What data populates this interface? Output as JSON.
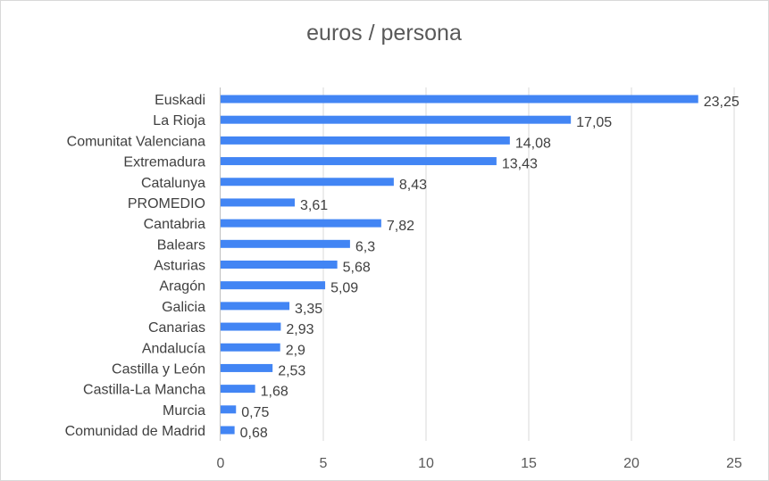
{
  "chart_data": {
    "type": "bar",
    "orientation": "horizontal",
    "title": "euros / persona",
    "xlabel": "",
    "ylabel": "",
    "xlim": [
      0,
      25
    ],
    "xticks": [
      0,
      5,
      10,
      15,
      20,
      25
    ],
    "grid": true,
    "legend": "none",
    "bar_color": "#4285F4",
    "categories": [
      "Euskadi",
      "La Rioja",
      "Comunitat Valenciana",
      "Extremadura",
      "Catalunya",
      "PROMEDIO",
      "Cantabria",
      "Balears",
      "Asturias",
      "Aragón",
      "Galicia",
      "Canarias",
      "Andalucía",
      "Castilla y León",
      "Castilla-La Mancha",
      "Murcia",
      "Comunidad de Madrid"
    ],
    "values": [
      23.25,
      17.05,
      14.08,
      13.43,
      8.43,
      3.61,
      7.82,
      6.3,
      5.68,
      5.09,
      3.35,
      2.93,
      2.9,
      2.53,
      1.68,
      0.75,
      0.68
    ],
    "data_labels": [
      "23,25",
      "17,05",
      "14,08",
      "13,43",
      "8,43",
      "3,61",
      "7,82",
      "6,3",
      "5,68",
      "5,09",
      "3,35",
      "2,93",
      "2,9",
      "2,53",
      "1,68",
      "0,75",
      "0,68"
    ]
  }
}
